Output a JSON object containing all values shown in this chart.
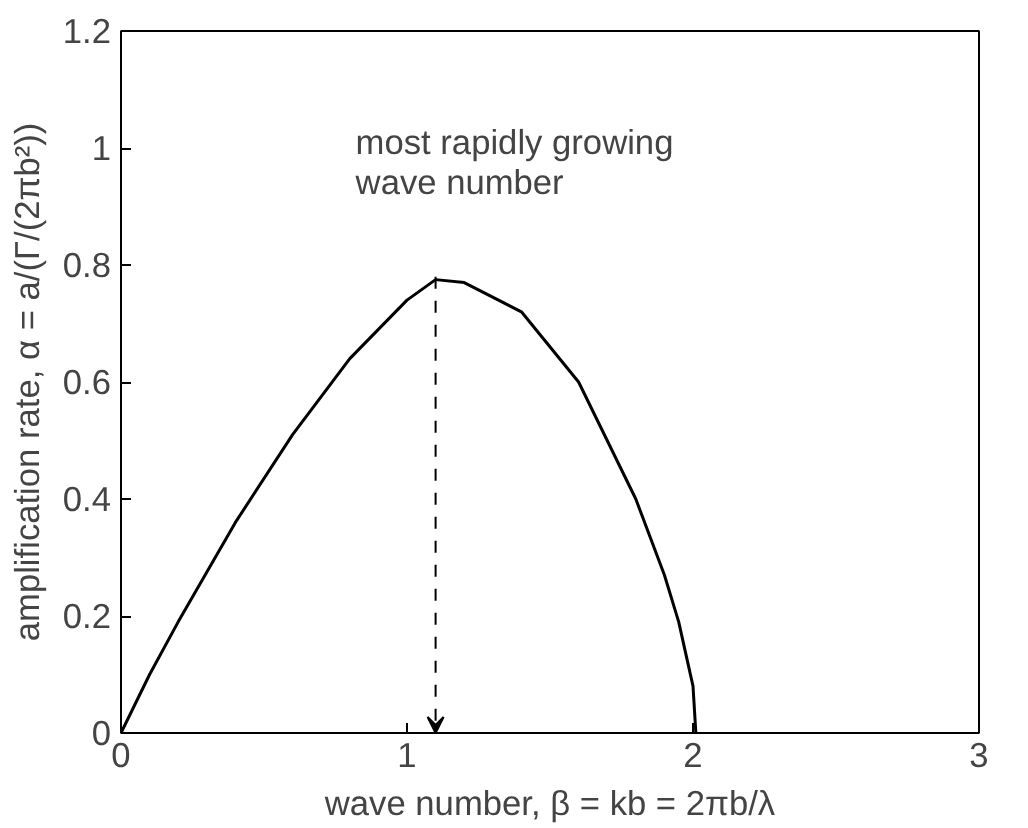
{
  "chart_data": {
    "type": "line",
    "xlabel": "wave number, β = kb = 2πb/λ",
    "ylabel": "amplification rate, α = a/(Γ/(2πb²))",
    "x": [
      0,
      0.05,
      0.1,
      0.2,
      0.4,
      0.6,
      0.8,
      1.0,
      1.1,
      1.2,
      1.4,
      1.6,
      1.8,
      1.9,
      1.95,
      2.0,
      2.01
    ],
    "series": [
      {
        "color": "#000000",
        "values": [
          0,
          0.05,
          0.1,
          0.19,
          0.36,
          0.51,
          0.64,
          0.74,
          0.775,
          0.77,
          0.72,
          0.6,
          0.4,
          0.27,
          0.19,
          0.08,
          0
        ]
      }
    ],
    "xlim": [
      0,
      3
    ],
    "ylim": [
      0,
      1.2
    ],
    "xticks": [
      0,
      1,
      2,
      3
    ],
    "yticks": [
      0,
      0.2,
      0.4,
      0.6,
      0.8,
      1,
      1.2
    ],
    "grid": false,
    "line_style": "solid",
    "annotations": [
      {
        "text": "most rapidly growing\nwave number",
        "x": 1.1,
        "y": 0.78
      }
    ]
  }
}
